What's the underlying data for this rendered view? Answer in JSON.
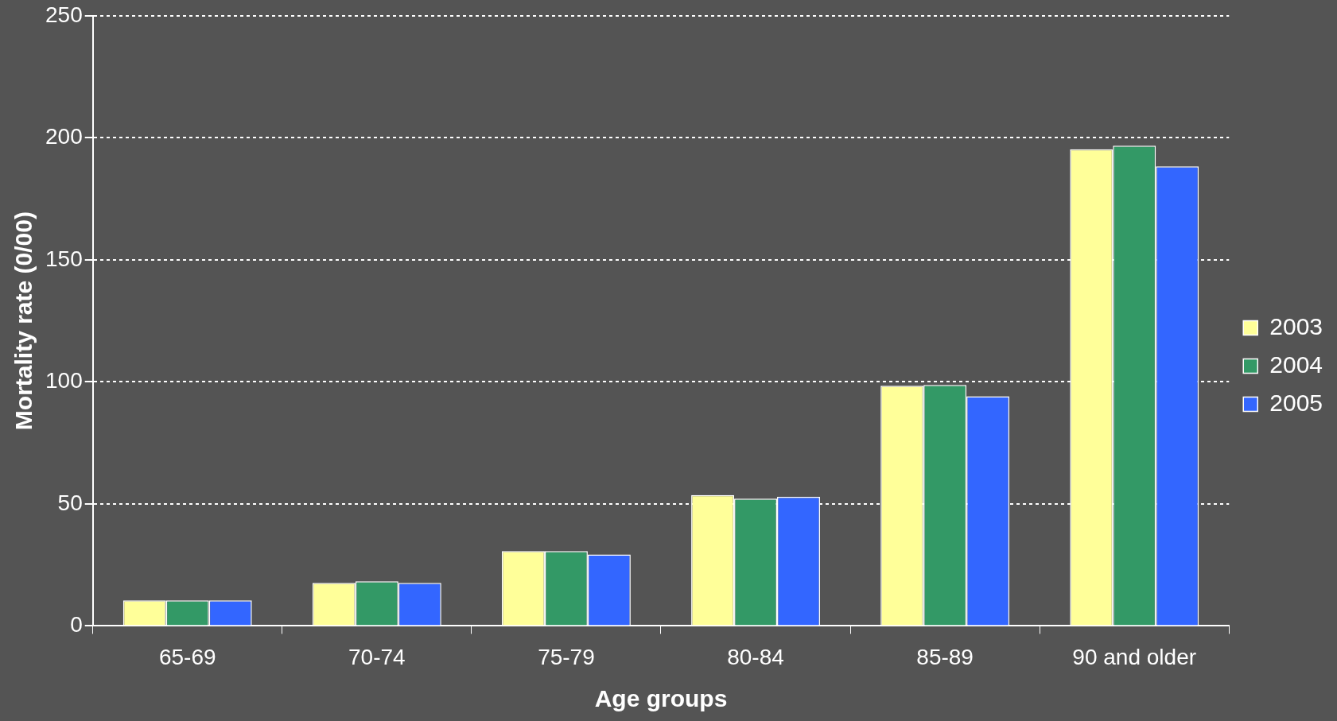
{
  "chart_data": {
    "type": "bar",
    "xlabel": "Age groups",
    "ylabel": "Mortality rate (0/00)",
    "categories": [
      "65-69",
      "70-74",
      "75-79",
      "80-84",
      "85-89",
      "90 and older"
    ],
    "series": [
      {
        "name": "2003",
        "color": "#ffff99",
        "values": [
          10.5,
          17.6,
          30.7,
          53.6,
          98.4,
          195.3
        ]
      },
      {
        "name": "2004",
        "color": "#339966",
        "values": [
          10.5,
          18.3,
          30.7,
          52.2,
          98.7,
          196.8
        ]
      },
      {
        "name": "2005",
        "color": "#3366ff",
        "values": [
          10.5,
          17.6,
          29.3,
          52.9,
          94.1,
          188.3
        ]
      }
    ],
    "ylim": [
      0,
      250
    ],
    "yticks": [
      0,
      50,
      100,
      150,
      200,
      250
    ],
    "grid": "y",
    "legend": "right"
  }
}
